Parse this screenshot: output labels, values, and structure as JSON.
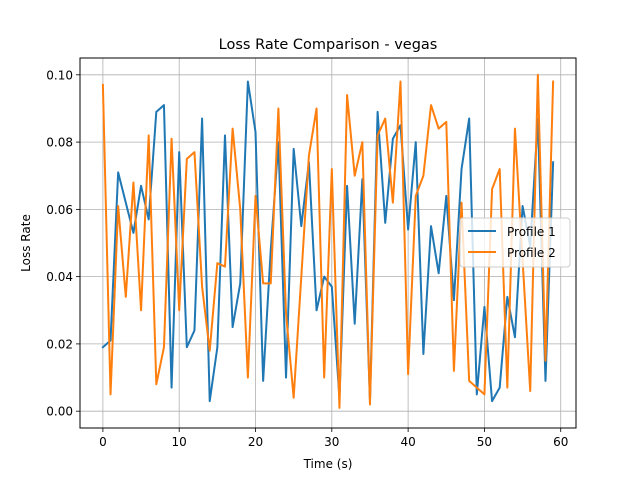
{
  "chart_data": {
    "type": "line",
    "title": "Loss Rate Comparison - vegas",
    "xlabel": "Time (s)",
    "ylabel": "Loss Rate",
    "xlim": [
      -3,
      62
    ],
    "ylim": [
      -0.005,
      0.105
    ],
    "x_ticks": [
      0,
      10,
      20,
      30,
      40,
      50,
      60
    ],
    "y_ticks": [
      0.0,
      0.02,
      0.04,
      0.06,
      0.08,
      0.1
    ],
    "x_tick_labels": [
      "0",
      "10",
      "20",
      "30",
      "40",
      "50",
      "60"
    ],
    "y_tick_labels": [
      "0.00",
      "0.02",
      "0.04",
      "0.06",
      "0.08",
      "0.10"
    ],
    "grid": true,
    "legend_position": "center-right",
    "x": [
      0,
      1,
      2,
      3,
      4,
      5,
      6,
      7,
      8,
      9,
      10,
      11,
      12,
      13,
      14,
      15,
      16,
      17,
      18,
      19,
      20,
      21,
      22,
      23,
      24,
      25,
      26,
      27,
      28,
      29,
      30,
      31,
      32,
      33,
      34,
      35,
      36,
      37,
      38,
      39,
      40,
      41,
      42,
      43,
      44,
      45,
      46,
      47,
      48,
      49,
      50,
      51,
      52,
      53,
      54,
      55,
      56,
      57,
      58,
      59
    ],
    "series": [
      {
        "name": "Profile 1",
        "color": "#1f77b4",
        "values": [
          0.019,
          0.021,
          0.071,
          0.062,
          0.053,
          0.067,
          0.057,
          0.089,
          0.091,
          0.007,
          0.077,
          0.019,
          0.024,
          0.087,
          0.003,
          0.019,
          0.082,
          0.025,
          0.038,
          0.098,
          0.083,
          0.009,
          0.048,
          0.08,
          0.01,
          0.078,
          0.055,
          0.074,
          0.03,
          0.04,
          0.037,
          0.004,
          0.067,
          0.026,
          0.069,
          0.003,
          0.089,
          0.056,
          0.081,
          0.085,
          0.054,
          0.08,
          0.017,
          0.055,
          0.041,
          0.064,
          0.033,
          0.072,
          0.087,
          0.005,
          0.031,
          0.003,
          0.007,
          0.034,
          0.022,
          0.061,
          0.049,
          0.087,
          0.009,
          0.074
        ]
      },
      {
        "name": "Profile 2",
        "color": "#ff7f0e",
        "values": [
          0.097,
          0.005,
          0.061,
          0.034,
          0.068,
          0.03,
          0.082,
          0.008,
          0.019,
          0.081,
          0.03,
          0.075,
          0.077,
          0.037,
          0.018,
          0.044,
          0.043,
          0.084,
          0.06,
          0.01,
          0.064,
          0.038,
          0.038,
          0.09,
          0.029,
          0.004,
          0.04,
          0.076,
          0.09,
          0.01,
          0.072,
          0.001,
          0.094,
          0.07,
          0.08,
          0.002,
          0.082,
          0.087,
          0.062,
          0.098,
          0.011,
          0.064,
          0.07,
          0.091,
          0.084,
          0.086,
          0.012,
          0.062,
          0.009,
          0.007,
          0.005,
          0.066,
          0.072,
          0.007,
          0.084,
          0.045,
          0.006,
          0.1,
          0.015,
          0.098
        ]
      }
    ]
  }
}
